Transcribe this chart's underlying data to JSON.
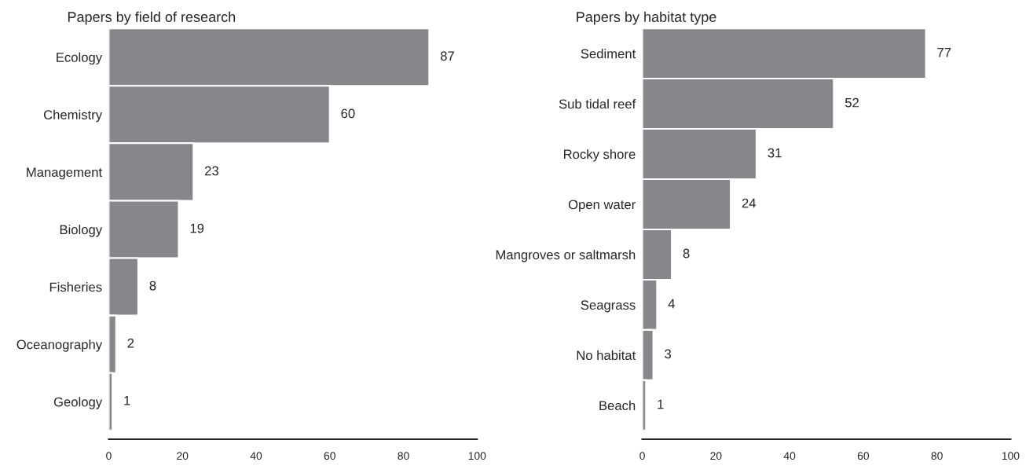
{
  "chart_data": [
    {
      "type": "bar",
      "orientation": "horizontal",
      "title": "Papers by field of research",
      "categories": [
        "Ecology",
        "Chemistry",
        "Management",
        "Biology",
        "Fisheries",
        "Oceanography",
        "Geology"
      ],
      "values": [
        87,
        60,
        23,
        19,
        8,
        2,
        1
      ],
      "color": "#86878b",
      "xlim": [
        0,
        100
      ],
      "xticks": [
        0,
        20,
        40,
        60,
        80,
        100
      ],
      "data_labels": true,
      "grid": false
    },
    {
      "type": "bar",
      "orientation": "horizontal",
      "title": "Papers by habitat type",
      "categories": [
        "Sediment",
        "Sub tidal reef",
        "Rocky shore",
        "Open water",
        "Mangroves or saltmarsh",
        "Seagrass",
        "No habitat",
        "Beach"
      ],
      "values": [
        77,
        52,
        31,
        24,
        8,
        4,
        3,
        1
      ],
      "color": "#86878b",
      "xlim": [
        0,
        100
      ],
      "xticks": [
        0,
        20,
        40,
        60,
        80,
        100
      ],
      "data_labels": true,
      "grid": false
    }
  ]
}
